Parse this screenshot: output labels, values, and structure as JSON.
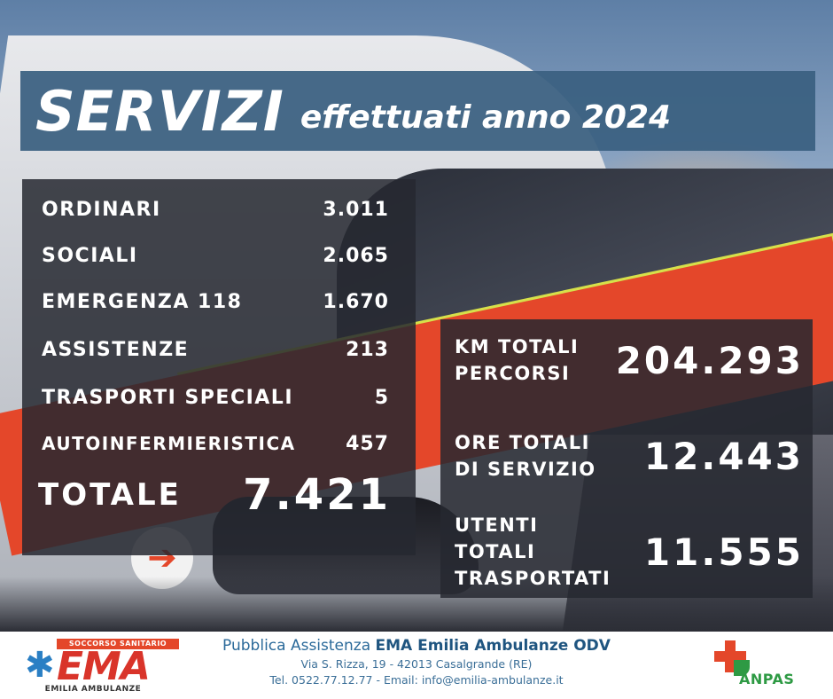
{
  "title": {
    "main": "SERVIZI",
    "sub": "effettuati anno 2024"
  },
  "services": {
    "rows": [
      {
        "label": "ORDINARI",
        "value": "3.011"
      },
      {
        "label": "SOCIALI",
        "value": "2.065"
      },
      {
        "label": "EMERGENZA 118",
        "value": "1.670"
      },
      {
        "label": "ASSISTENZE",
        "value": "213"
      },
      {
        "label": "TRASPORTI SPECIALI",
        "value": "5"
      },
      {
        "label": "AUTOINFERMIERISTICA",
        "value": "457"
      }
    ],
    "total_label": "TOTALE",
    "total_value": "7.421"
  },
  "stats": [
    {
      "label_line1": "KM TOTALI",
      "label_line2": "PERCORSI",
      "value": "204.293"
    },
    {
      "label_line1": "ORE TOTALI",
      "label_line2": "DI SERVIZIO",
      "value": "12.443"
    },
    {
      "label_line1": "UTENTI TOTALI",
      "label_line2": "TRASPORTATI",
      "value": "11.555"
    }
  ],
  "footer": {
    "ema_logo": {
      "banner": "SOCCORSO SANITARIO",
      "word": "EMA",
      "sub": "EMILIA AMBULANZE",
      "icon": "star-of-life-icon"
    },
    "org_prefix": "Pubblica Assistenza ",
    "org_name": "EMA Emilia Ambulanze ODV",
    "address": "Via S. Rizza, 19 - 42013 Casalgrande (RE)",
    "contacts": "Tel. 0522.77.12.77 - Email: info@emilia-ambulanze.it",
    "anpas_logo": "ANPAS"
  },
  "colors": {
    "banner": "#3a6080",
    "panel": "#26282e",
    "accent_red": "#e4472a",
    "accent_green": "#2e9a44",
    "footer_text": "#2b6a9a"
  }
}
